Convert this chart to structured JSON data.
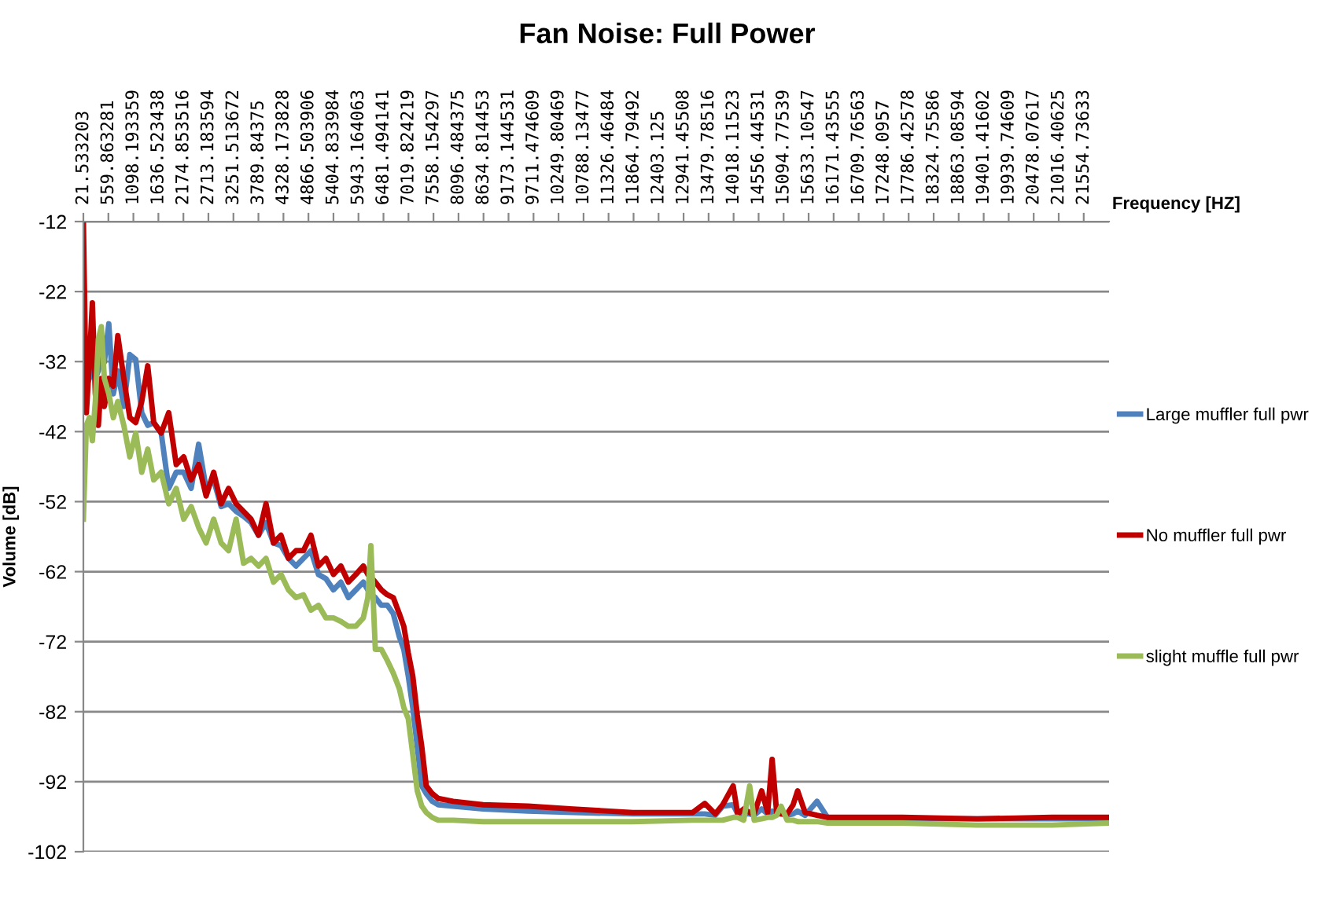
{
  "chart_data": {
    "type": "line",
    "title": "Fan Noise: Full Power",
    "xlabel": "Frequency [HZ]",
    "ylabel": "Volume [dB]",
    "x": [
      21.533203,
      86,
      150,
      215,
      279,
      344,
      408,
      473,
      569,
      666,
      763,
      892,
      1021,
      1149,
      1278,
      1407,
      1536,
      1697,
      1859,
      2020,
      2181,
      2342,
      2503,
      2664,
      2826,
      2987,
      3148,
      3309,
      3470,
      3631,
      3792,
      3953,
      4115,
      4276,
      4437,
      4598,
      4759,
      4920,
      5082,
      5243,
      5404,
      5565,
      5726,
      5887,
      6048,
      6145,
      6210,
      6306,
      6435,
      6564,
      6693,
      6822,
      6919,
      7015,
      7112,
      7209,
      7306,
      7402,
      7531,
      7660,
      7982,
      8627,
      9594,
      10561,
      11850,
      13139,
      13397,
      13623,
      13784,
      14009,
      14106,
      14235,
      14364,
      14461,
      14622,
      14751,
      14848,
      14945,
      15041,
      15170,
      15299,
      15396,
      15557,
      15815,
      16040,
      17652,
      19263,
      20875,
      22100
    ],
    "series": [
      {
        "name": "Large muffler full pwr",
        "color": "#4f81bd",
        "values": [
          -36.6,
          -35.5,
          -34.4,
          -32.1,
          -34.4,
          -33.3,
          -31.0,
          -32.1,
          -26.6,
          -36.6,
          -33.3,
          -38.4,
          -31.0,
          -31.7,
          -39.3,
          -41.1,
          -40.7,
          -42.2,
          -50.1,
          -47.8,
          -47.8,
          -50.1,
          -43.8,
          -50.1,
          -48.9,
          -52.7,
          -52.3,
          -53.4,
          -54.1,
          -55.0,
          -56.8,
          -55.0,
          -57.9,
          -58.3,
          -60.1,
          -61.2,
          -60.1,
          -59.0,
          -62.4,
          -63.0,
          -64.6,
          -63.5,
          -65.7,
          -64.6,
          -63.5,
          -64.6,
          -65.3,
          -65.7,
          -66.8,
          -66.8,
          -68.0,
          -71.3,
          -73.1,
          -76.9,
          -81.4,
          -87.0,
          -92.6,
          -93.7,
          -94.8,
          -95.3,
          -95.5,
          -95.9,
          -96.2,
          -96.4,
          -96.6,
          -96.6,
          -96.6,
          -96.8,
          -95.5,
          -95.3,
          -96.6,
          -96.6,
          -96.6,
          -96.8,
          -95.9,
          -96.6,
          -96.2,
          -96.6,
          -96.6,
          -96.8,
          -96.6,
          -96.2,
          -96.8,
          -94.8,
          -97.1,
          -97.3,
          -97.3,
          -97.3,
          -97.3
        ]
      },
      {
        "name": "No muffler full pwr",
        "color": "#c00000",
        "values": [
          -12,
          -39.3,
          -32.1,
          -23.6,
          -36.6,
          -41.1,
          -34.4,
          -38.4,
          -34.4,
          -35.5,
          -28.3,
          -34.4,
          -40.0,
          -40.7,
          -37.7,
          -32.6,
          -40.7,
          -42.2,
          -39.3,
          -46.7,
          -45.6,
          -48.9,
          -46.7,
          -51.2,
          -47.8,
          -52.3,
          -50.1,
          -52.3,
          -53.4,
          -54.5,
          -56.8,
          -52.3,
          -57.9,
          -56.8,
          -60.1,
          -59.0,
          -59.0,
          -56.8,
          -61.2,
          -60.1,
          -62.4,
          -61.2,
          -63.5,
          -62.4,
          -61.2,
          -62.4,
          -62.8,
          -63.5,
          -64.6,
          -65.3,
          -65.7,
          -68.0,
          -69.8,
          -73.6,
          -76.9,
          -82.5,
          -87.0,
          -92.6,
          -93.7,
          -94.4,
          -94.8,
          -95.3,
          -95.5,
          -95.9,
          -96.4,
          -96.4,
          -95.1,
          -96.6,
          -95.3,
          -92.6,
          -96.6,
          -95.9,
          -96.4,
          -96.6,
          -93.3,
          -96.4,
          -88.8,
          -96.4,
          -96.6,
          -96.6,
          -95.3,
          -93.3,
          -96.4,
          -96.8,
          -97.1,
          -97.1,
          -97.3,
          -97.1,
          -97.1
        ]
      },
      {
        "name": "slight muffle full pwr",
        "color": "#9bbb59",
        "values": [
          -54.5,
          -41.1,
          -40.0,
          -43.3,
          -37.7,
          -28.8,
          -27.0,
          -34.4,
          -36.6,
          -40.0,
          -37.7,
          -41.1,
          -45.6,
          -42.2,
          -47.8,
          -44.5,
          -48.9,
          -47.8,
          -52.3,
          -50.1,
          -54.5,
          -52.7,
          -55.7,
          -57.9,
          -54.5,
          -57.9,
          -59.0,
          -54.5,
          -60.8,
          -60.1,
          -61.2,
          -60.1,
          -63.5,
          -62.4,
          -64.6,
          -65.7,
          -65.3,
          -67.5,
          -66.8,
          -68.6,
          -68.6,
          -69.1,
          -69.8,
          -69.8,
          -68.6,
          -65.7,
          -58.3,
          -73.1,
          -73.1,
          -74.7,
          -76.5,
          -78.7,
          -81.4,
          -83.0,
          -88.1,
          -93.3,
          -95.5,
          -96.4,
          -97.1,
          -97.5,
          -97.5,
          -97.7,
          -97.7,
          -97.7,
          -97.7,
          -97.5,
          -97.5,
          -97.5,
          -97.5,
          -97.1,
          -97.1,
          -97.5,
          -92.6,
          -97.5,
          -97.3,
          -97.1,
          -97.1,
          -96.8,
          -95.5,
          -97.5,
          -97.5,
          -97.7,
          -97.7,
          -97.7,
          -97.9,
          -97.9,
          -98.2,
          -98.2,
          -97.9
        ]
      }
    ],
    "xlim": [
      21.533203,
      22100
    ],
    "xticks": [
      21.533203,
      559.863281,
      1098.193359,
      1636.523438,
      2174.853516,
      2713.183594,
      3251.513672,
      3789.84375,
      4328.173828,
      4866.503906,
      5404.833984,
      5943.164063,
      6481.494141,
      7019.824219,
      7558.154297,
      8096.484375,
      8634.814453,
      9173.144531,
      9711.474609,
      10249.80469,
      10788.13477,
      11326.46484,
      11864.79492,
      12403.125,
      12941.45508,
      13479.78516,
      14018.11523,
      14556.44531,
      15094.77539,
      15633.10547,
      16171.43555,
      16709.76563,
      17248.0957,
      17786.42578,
      18324.75586,
      18863.08594,
      19401.41602,
      19939.74609,
      20478.07617,
      21016.40625,
      21554.73633
    ],
    "ylim": [
      -102,
      -12
    ],
    "yticks": [
      -102,
      -92,
      -82,
      -72,
      -62,
      -52,
      -42,
      -32,
      -22,
      -12
    ],
    "grid": "y",
    "legend": "right",
    "marker": "none",
    "line_style": "solid"
  }
}
